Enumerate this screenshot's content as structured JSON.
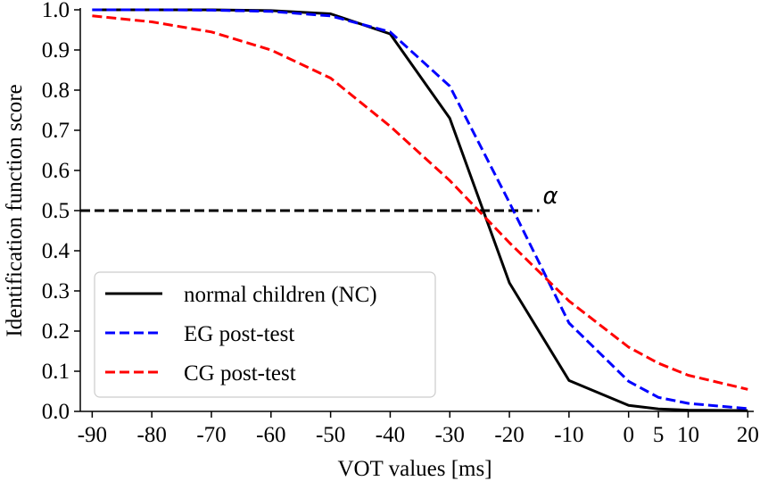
{
  "chart_data": {
    "type": "line",
    "title": "",
    "xlabel": "VOT values [ms]",
    "ylabel": "Identification function score",
    "xlim": [
      -92,
      21
    ],
    "ylim": [
      0.0,
      1.0
    ],
    "xticks": [
      -90,
      -80,
      -70,
      -60,
      -50,
      -40,
      -30,
      -20,
      -10,
      0,
      5,
      10,
      20
    ],
    "xtick_labels": [
      "-90",
      "-80",
      "-70",
      "-60",
      "-50",
      "-40",
      "-30",
      "-20",
      "-10",
      "0",
      "5",
      "10",
      "20"
    ],
    "yticks": [
      0.0,
      0.1,
      0.2,
      0.3,
      0.4,
      0.5,
      0.6,
      0.7,
      0.8,
      0.9,
      1.0
    ],
    "ytick_labels": [
      "0.0",
      "0.1",
      "0.2",
      "0.3",
      "0.4",
      "0.5",
      "0.6",
      "0.7",
      "0.8",
      "0.9",
      "1.0"
    ],
    "legend_location": "lower-left",
    "series": [
      {
        "name": "normal children (NC)",
        "color": "#000000",
        "dash": "solid",
        "x": [
          -90,
          -80,
          -70,
          -60,
          -50,
          -40,
          -30,
          -20,
          -10,
          0,
          5,
          10,
          20
        ],
        "values": [
          1.0,
          1.0,
          1.0,
          0.998,
          0.99,
          0.94,
          0.73,
          0.32,
          0.077,
          0.015,
          0.006,
          0.003,
          0.002
        ]
      },
      {
        "name": "EG post-test",
        "color": "#0000ff",
        "dash": "dashed",
        "x": [
          -90,
          -80,
          -70,
          -60,
          -50,
          -40,
          -30,
          -20,
          -10,
          0,
          5,
          10,
          20
        ],
        "values": [
          1.0,
          1.0,
          0.999,
          0.996,
          0.985,
          0.945,
          0.81,
          0.52,
          0.22,
          0.075,
          0.035,
          0.02,
          0.007
        ]
      },
      {
        "name": "CG post-test",
        "color": "#ff0000",
        "dash": "dashed",
        "x": [
          -90,
          -80,
          -70,
          -60,
          -50,
          -40,
          -30,
          -20,
          -10,
          0,
          5,
          10,
          20
        ],
        "values": [
          0.985,
          0.97,
          0.945,
          0.9,
          0.83,
          0.71,
          0.575,
          0.42,
          0.275,
          0.16,
          0.12,
          0.09,
          0.055
        ]
      }
    ],
    "reference_line": {
      "y": 0.5,
      "x_start": -92,
      "x_end": -15,
      "color": "#000000",
      "dash": "dashed"
    },
    "annotation": {
      "text": "α",
      "x": -15,
      "y": 0.5
    }
  }
}
